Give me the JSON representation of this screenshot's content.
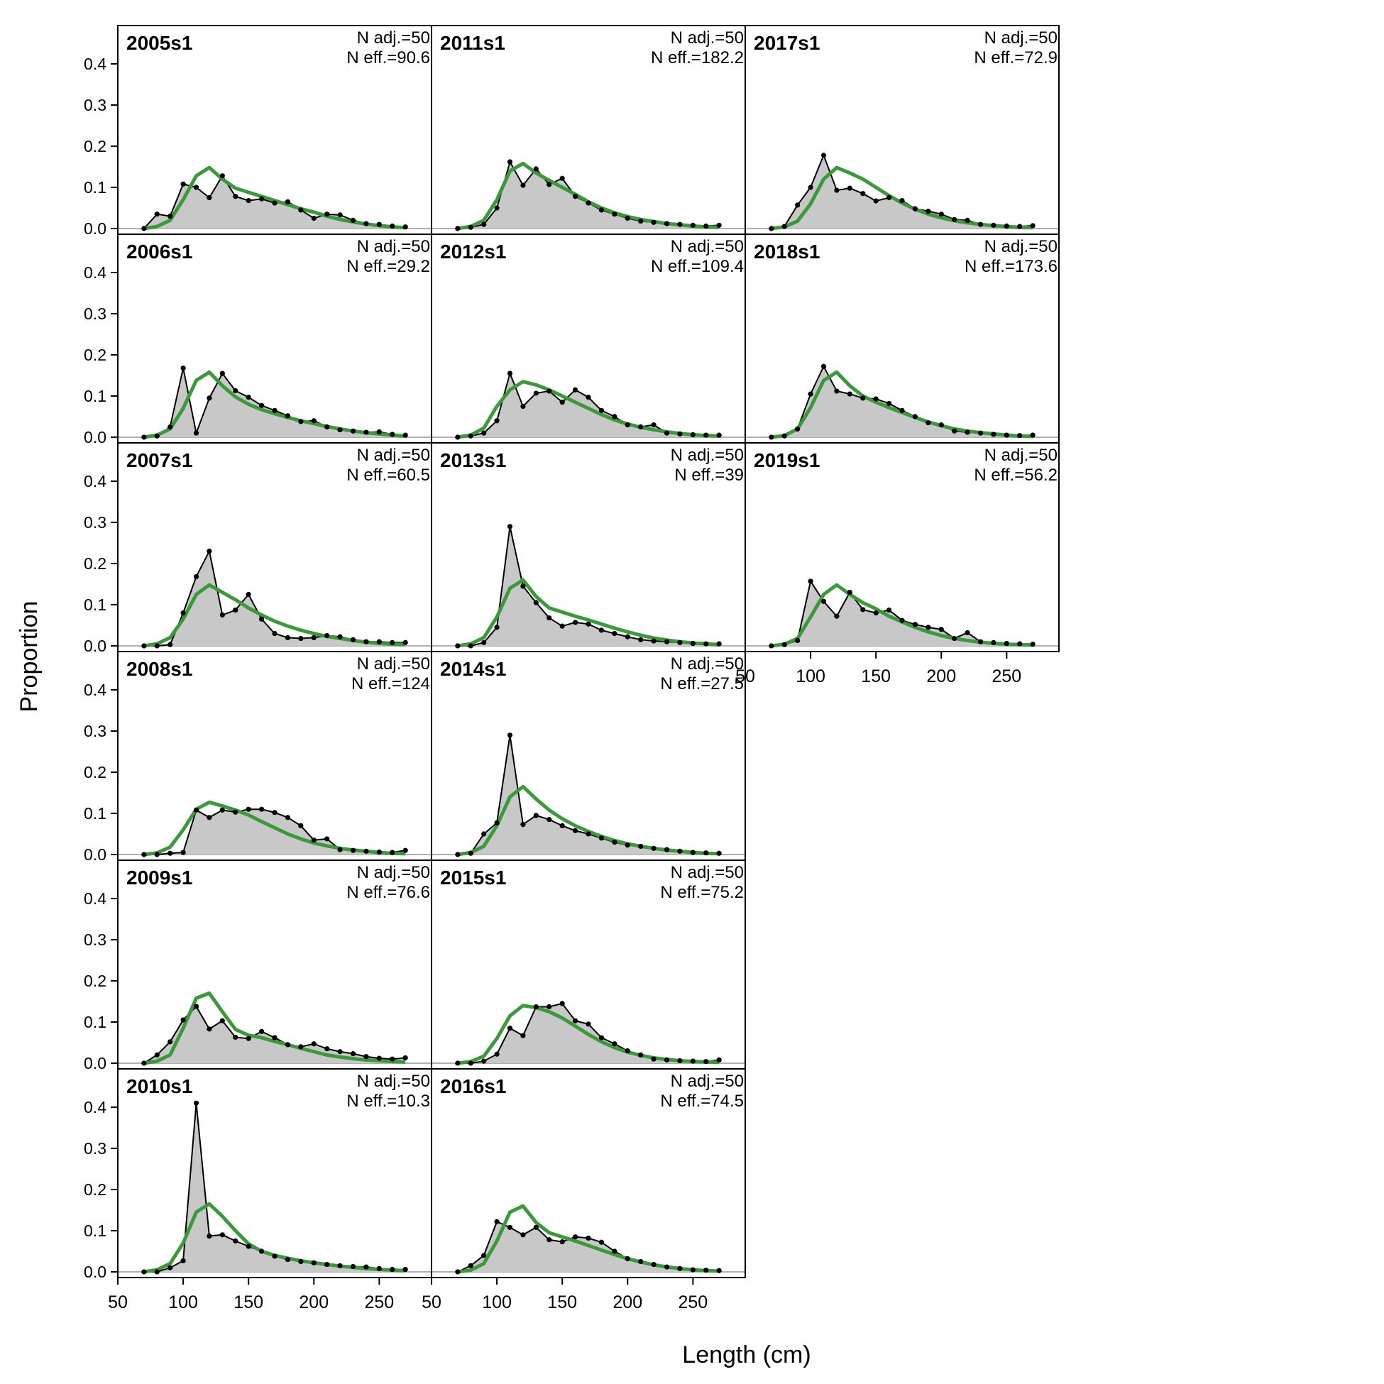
{
  "chart_data": {
    "type": "area",
    "xlabel": "Length (cm)",
    "ylabel": "Proportion",
    "xlim": [
      50,
      290
    ],
    "ylim": [
      0,
      0.45
    ],
    "x_ticks": [
      50,
      100,
      150,
      200,
      250
    ],
    "x_tick_labels": [
      "50",
      "100",
      "150",
      "200",
      "250"
    ],
    "y_ticks": [
      0,
      0.1,
      0.2,
      0.3,
      0.4
    ],
    "y_tick_labels": [
      "0.0",
      "0.1",
      "0.2",
      "0.3",
      "0.4"
    ],
    "x": [
      70,
      80,
      90,
      100,
      110,
      120,
      130,
      140,
      150,
      160,
      170,
      180,
      190,
      200,
      210,
      220,
      230,
      240,
      250,
      260,
      270
    ],
    "colors": {
      "observed_fill": "#c8c8c8",
      "observed_line": "#000000",
      "expected_line": "#3a9a3a"
    },
    "panels": [
      {
        "label": "2005s1",
        "n_adj": "N adj.=50",
        "n_eff": "N eff.=90.6",
        "observed": [
          0,
          0.035,
          0.03,
          0.108,
          0.1,
          0.075,
          0.128,
          0.078,
          0.068,
          0.072,
          0.062,
          0.065,
          0.045,
          0.025,
          0.035,
          0.033,
          0.02,
          0.012,
          0.01,
          0.006,
          0.004
        ],
        "expected": [
          0,
          0.005,
          0.02,
          0.07,
          0.128,
          0.148,
          0.12,
          0.098,
          0.088,
          0.078,
          0.068,
          0.058,
          0.048,
          0.04,
          0.03,
          0.022,
          0.016,
          0.011,
          0.007,
          0.004,
          0.002
        ]
      },
      {
        "label": "2006s1",
        "n_adj": "N adj.=50",
        "n_eff": "N eff.=29.2",
        "observed": [
          0,
          0.003,
          0.025,
          0.168,
          0.01,
          0.095,
          0.155,
          0.113,
          0.097,
          0.077,
          0.065,
          0.052,
          0.038,
          0.04,
          0.025,
          0.018,
          0.015,
          0.012,
          0.013,
          0.007,
          0.005
        ],
        "expected": [
          0,
          0.005,
          0.02,
          0.07,
          0.138,
          0.158,
          0.125,
          0.098,
          0.08,
          0.067,
          0.057,
          0.048,
          0.04,
          0.033,
          0.026,
          0.02,
          0.015,
          0.011,
          0.008,
          0.005,
          0.003
        ]
      },
      {
        "label": "2007s1",
        "n_adj": "N adj.=50",
        "n_eff": "N eff.=60.5",
        "observed": [
          0,
          0,
          0.003,
          0.08,
          0.168,
          0.23,
          0.075,
          0.087,
          0.125,
          0.065,
          0.03,
          0.02,
          0.018,
          0.02,
          0.025,
          0.022,
          0.015,
          0.01,
          0.01,
          0.008,
          0.008
        ],
        "expected": [
          0,
          0.005,
          0.02,
          0.065,
          0.125,
          0.148,
          0.13,
          0.112,
          0.092,
          0.075,
          0.06,
          0.048,
          0.038,
          0.03,
          0.023,
          0.018,
          0.013,
          0.009,
          0.006,
          0.004,
          0.003
        ]
      },
      {
        "label": "2008s1",
        "n_adj": "N adj.=50",
        "n_eff": "N eff.=124",
        "observed": [
          0,
          0,
          0.003,
          0.005,
          0.108,
          0.09,
          0.108,
          0.103,
          0.11,
          0.11,
          0.102,
          0.09,
          0.07,
          0.035,
          0.038,
          0.012,
          0.01,
          0.008,
          0.006,
          0.005,
          0.01
        ],
        "expected": [
          0,
          0.004,
          0.018,
          0.06,
          0.11,
          0.127,
          0.118,
          0.108,
          0.096,
          0.08,
          0.065,
          0.05,
          0.038,
          0.028,
          0.021,
          0.015,
          0.011,
          0.008,
          0.005,
          0.003,
          0.002
        ]
      },
      {
        "label": "2009s1",
        "n_adj": "N adj.=50",
        "n_eff": "N eff.=76.6",
        "observed": [
          0,
          0.02,
          0.052,
          0.105,
          0.138,
          0.083,
          0.103,
          0.063,
          0.06,
          0.077,
          0.062,
          0.045,
          0.04,
          0.047,
          0.035,
          0.028,
          0.023,
          0.016,
          0.012,
          0.01,
          0.013
        ],
        "expected": [
          0,
          0.005,
          0.02,
          0.085,
          0.158,
          0.17,
          0.125,
          0.082,
          0.068,
          0.062,
          0.053,
          0.045,
          0.036,
          0.028,
          0.02,
          0.015,
          0.011,
          0.008,
          0.006,
          0.004,
          0.003
        ]
      },
      {
        "label": "2010s1",
        "n_adj": "N adj.=50",
        "n_eff": "N eff.=10.3",
        "observed": [
          0,
          0,
          0.01,
          0.027,
          0.41,
          0.087,
          0.09,
          0.075,
          0.062,
          0.05,
          0.038,
          0.03,
          0.025,
          0.022,
          0.018,
          0.015,
          0.013,
          0.012,
          0.008,
          0.006,
          0.006
        ],
        "expected": [
          0,
          0.005,
          0.02,
          0.07,
          0.145,
          0.165,
          0.135,
          0.1,
          0.068,
          0.05,
          0.04,
          0.033,
          0.027,
          0.022,
          0.018,
          0.014,
          0.011,
          0.008,
          0.006,
          0.004,
          0.003
        ]
      },
      {
        "label": "2011s1",
        "n_adj": "N adj.=50",
        "n_eff": "N eff.=182.2",
        "observed": [
          0,
          0.003,
          0.01,
          0.05,
          0.162,
          0.105,
          0.145,
          0.107,
          0.122,
          0.078,
          0.062,
          0.045,
          0.035,
          0.025,
          0.018,
          0.015,
          0.012,
          0.01,
          0.008,
          0.006,
          0.008
        ],
        "expected": [
          0,
          0.005,
          0.02,
          0.07,
          0.14,
          0.158,
          0.135,
          0.117,
          0.1,
          0.083,
          0.065,
          0.05,
          0.038,
          0.029,
          0.022,
          0.017,
          0.012,
          0.009,
          0.006,
          0.004,
          0.003
        ]
      },
      {
        "label": "2012s1",
        "n_adj": "N adj.=50",
        "n_eff": "N eff.=109.4",
        "observed": [
          0,
          0.003,
          0.01,
          0.04,
          0.155,
          0.075,
          0.107,
          0.112,
          0.085,
          0.115,
          0.097,
          0.065,
          0.05,
          0.03,
          0.025,
          0.03,
          0.01,
          0.008,
          0.006,
          0.005,
          0.005
        ],
        "expected": [
          0,
          0.005,
          0.022,
          0.075,
          0.115,
          0.135,
          0.127,
          0.115,
          0.1,
          0.085,
          0.07,
          0.055,
          0.042,
          0.032,
          0.024,
          0.018,
          0.013,
          0.009,
          0.006,
          0.004,
          0.003
        ]
      },
      {
        "label": "2013s1",
        "n_adj": "N adj.=50",
        "n_eff": "N eff.=39",
        "observed": [
          0,
          0,
          0.008,
          0.045,
          0.29,
          0.145,
          0.105,
          0.068,
          0.048,
          0.057,
          0.053,
          0.038,
          0.03,
          0.022,
          0.015,
          0.012,
          0.01,
          0.008,
          0.006,
          0.005,
          0.005
        ],
        "expected": [
          0,
          0.005,
          0.02,
          0.07,
          0.14,
          0.16,
          0.12,
          0.092,
          0.082,
          0.072,
          0.063,
          0.053,
          0.043,
          0.034,
          0.026,
          0.019,
          0.014,
          0.01,
          0.007,
          0.005,
          0.003
        ]
      },
      {
        "label": "2014s1",
        "n_adj": "N adj.=50",
        "n_eff": "N eff.=27.5",
        "observed": [
          0,
          0.003,
          0.05,
          0.077,
          0.29,
          0.073,
          0.095,
          0.085,
          0.07,
          0.058,
          0.05,
          0.04,
          0.03,
          0.023,
          0.02,
          0.015,
          0.012,
          0.008,
          0.005,
          0.004,
          0.003
        ],
        "expected": [
          0,
          0.005,
          0.02,
          0.07,
          0.14,
          0.165,
          0.135,
          0.108,
          0.087,
          0.07,
          0.056,
          0.044,
          0.034,
          0.026,
          0.02,
          0.015,
          0.011,
          0.008,
          0.005,
          0.003,
          0.002
        ]
      },
      {
        "label": "2015s1",
        "n_adj": "N adj.=50",
        "n_eff": "N eff.=75.2",
        "observed": [
          0,
          0,
          0.005,
          0.022,
          0.085,
          0.067,
          0.137,
          0.137,
          0.145,
          0.103,
          0.095,
          0.062,
          0.047,
          0.03,
          0.02,
          0.01,
          0.008,
          0.006,
          0.005,
          0.004,
          0.008
        ],
        "expected": [
          0,
          0.004,
          0.017,
          0.06,
          0.115,
          0.14,
          0.135,
          0.125,
          0.11,
          0.09,
          0.07,
          0.052,
          0.038,
          0.027,
          0.019,
          0.013,
          0.009,
          0.006,
          0.004,
          0.003,
          0.002
        ]
      },
      {
        "label": "2016s1",
        "n_adj": "N adj.=50",
        "n_eff": "N eff.=74.5",
        "observed": [
          0,
          0.015,
          0.04,
          0.122,
          0.108,
          0.09,
          0.108,
          0.078,
          0.073,
          0.085,
          0.082,
          0.072,
          0.05,
          0.032,
          0.025,
          0.018,
          0.012,
          0.008,
          0.005,
          0.004,
          0.003
        ],
        "expected": [
          0,
          0.004,
          0.02,
          0.075,
          0.145,
          0.16,
          0.12,
          0.095,
          0.085,
          0.075,
          0.064,
          0.053,
          0.042,
          0.032,
          0.024,
          0.017,
          0.012,
          0.008,
          0.005,
          0.003,
          0.002
        ]
      },
      {
        "label": "2017s1",
        "n_adj": "N adj.=50",
        "n_eff": "N eff.=72.9",
        "observed": [
          0,
          0.005,
          0.057,
          0.1,
          0.178,
          0.093,
          0.098,
          0.085,
          0.067,
          0.075,
          0.068,
          0.048,
          0.042,
          0.035,
          0.022,
          0.02,
          0.01,
          0.008,
          0.006,
          0.005,
          0.007
        ],
        "expected": [
          0,
          0.004,
          0.018,
          0.06,
          0.12,
          0.148,
          0.135,
          0.12,
          0.1,
          0.08,
          0.062,
          0.047,
          0.035,
          0.026,
          0.019,
          0.014,
          0.01,
          0.007,
          0.005,
          0.003,
          0.002
        ]
      },
      {
        "label": "2018s1",
        "n_adj": "N adj.=50",
        "n_eff": "N eff.=173.6",
        "observed": [
          0,
          0.003,
          0.02,
          0.105,
          0.172,
          0.112,
          0.105,
          0.095,
          0.093,
          0.082,
          0.065,
          0.05,
          0.035,
          0.03,
          0.015,
          0.012,
          0.01,
          0.007,
          0.005,
          0.004,
          0.005
        ],
        "expected": [
          0,
          0.004,
          0.02,
          0.072,
          0.138,
          0.158,
          0.125,
          0.1,
          0.085,
          0.072,
          0.06,
          0.048,
          0.037,
          0.028,
          0.02,
          0.015,
          0.011,
          0.008,
          0.005,
          0.003,
          0.002
        ]
      },
      {
        "label": "2019s1",
        "n_adj": "N adj.=50",
        "n_eff": "N eff.=56.2",
        "observed": [
          0,
          0.003,
          0.013,
          0.157,
          0.108,
          0.072,
          0.13,
          0.088,
          0.08,
          0.087,
          0.062,
          0.052,
          0.045,
          0.04,
          0.018,
          0.032,
          0.01,
          0.008,
          0.006,
          0.005,
          0.004
        ],
        "expected": [
          0,
          0.004,
          0.018,
          0.07,
          0.125,
          0.148,
          0.125,
          0.105,
          0.09,
          0.072,
          0.058,
          0.045,
          0.034,
          0.025,
          0.018,
          0.013,
          0.009,
          0.006,
          0.004,
          0.003,
          0.002
        ]
      }
    ]
  }
}
